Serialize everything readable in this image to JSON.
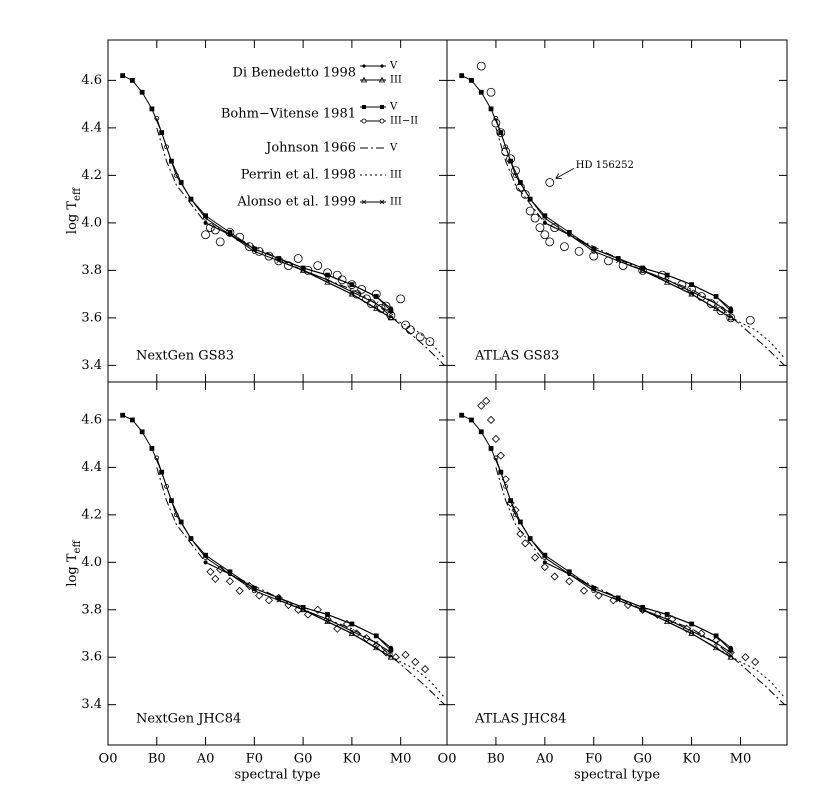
{
  "ylabel": "log T",
  "ylabel_sub": "eff",
  "xlabel": "spectral type",
  "xlim": [
    0,
    69.5
  ],
  "xticks": [
    {
      "value": 0,
      "label": "O0"
    },
    {
      "value": 10,
      "label": "B0"
    },
    {
      "value": 20,
      "label": "A0"
    },
    {
      "value": 30,
      "label": "F0"
    },
    {
      "value": 40,
      "label": "G0"
    },
    {
      "value": 50,
      "label": "K0"
    },
    {
      "value": 60,
      "label": "M0"
    }
  ],
  "curves": [
    {
      "name": "Di Benedetto 1998",
      "lines": [
        {
          "class": "V",
          "style": "dot",
          "x": [
            20,
            25,
            30,
            35,
            40,
            45,
            50,
            55,
            58
          ],
          "values": [
            4.0,
            3.95,
            3.89,
            3.85,
            3.81,
            3.78,
            3.74,
            3.69,
            3.64
          ]
        },
        {
          "class": "III",
          "style": "triangle",
          "x": [
            40,
            45,
            50,
            55,
            58
          ],
          "values": [
            3.8,
            3.75,
            3.7,
            3.64,
            3.6
          ]
        }
      ]
    },
    {
      "name": "Bohm−Vitense 1981",
      "lines": [
        {
          "class": "V",
          "style": "square",
          "x": [
            3,
            5,
            7,
            9,
            11,
            13,
            15,
            17,
            20,
            25,
            30,
            35,
            40,
            45,
            50,
            55,
            58
          ],
          "values": [
            4.62,
            4.6,
            4.55,
            4.48,
            4.38,
            4.26,
            4.17,
            4.1,
            4.03,
            3.96,
            3.89,
            3.85,
            3.81,
            3.78,
            3.74,
            3.69,
            3.63
          ]
        },
        {
          "class": "III−II",
          "style": "circle",
          "x": [
            10,
            12,
            14,
            17,
            20,
            30,
            40,
            50,
            58
          ],
          "values": [
            4.44,
            4.32,
            4.2,
            4.1,
            4.02,
            3.88,
            3.8,
            3.7,
            3.6
          ]
        }
      ]
    },
    {
      "name": "Johnson 1966",
      "lines": [
        {
          "class": "V",
          "style": "dashdot",
          "x": [
            10,
            12,
            14,
            17,
            20,
            30,
            40,
            50,
            55,
            60,
            65,
            69
          ],
          "values": [
            4.4,
            4.26,
            4.16,
            4.08,
            4.0,
            3.9,
            3.8,
            3.72,
            3.66,
            3.57,
            3.48,
            3.4
          ]
        }
      ]
    },
    {
      "name": "Perrin et al. 1998",
      "lines": [
        {
          "class": "III",
          "style": "dotted",
          "x": [
            50,
            55,
            60,
            63,
            66,
            69
          ],
          "values": [
            3.7,
            3.64,
            3.58,
            3.55,
            3.5,
            3.43
          ]
        }
      ]
    },
    {
      "name": "Alonso et al. 1999",
      "lines": [
        {
          "class": "III",
          "style": "cross",
          "x": [
            35,
            40,
            45,
            50,
            55,
            58
          ],
          "values": [
            3.84,
            3.8,
            3.76,
            3.71,
            3.66,
            3.62
          ]
        }
      ]
    }
  ],
  "chart_data": [
    {
      "type": "scatter",
      "label": "NextGen GS83",
      "marker": "circle",
      "ylim": [
        3.33,
        4.77
      ],
      "yticks": [
        3.4,
        3.6,
        3.8,
        {
          "value": 4,
          "label": "4.0"
        },
        4.2,
        4.4,
        4.6
      ],
      "x": [
        20,
        21,
        22,
        23,
        25,
        27,
        29,
        31,
        33,
        35,
        37,
        39,
        41,
        43,
        45,
        47,
        48,
        50,
        51,
        52,
        53,
        54,
        55,
        56,
        58,
        60,
        61,
        62,
        64,
        66,
        57
      ],
      "values": [
        3.95,
        3.98,
        3.97,
        3.92,
        3.96,
        3.94,
        3.9,
        3.88,
        3.86,
        3.84,
        3.82,
        3.85,
        3.8,
        3.82,
        3.79,
        3.78,
        3.76,
        3.74,
        3.7,
        3.72,
        3.68,
        3.66,
        3.7,
        3.64,
        3.61,
        3.68,
        3.57,
        3.55,
        3.52,
        3.5,
        3.65
      ]
    },
    {
      "type": "scatter",
      "label": "ATLAS GS83",
      "marker": "circle",
      "ylim": [
        3.33,
        4.77
      ],
      "yticks": [
        3.4,
        3.6,
        3.8,
        {
          "value": 4,
          "label": "4.0"
        },
        4.2,
        4.4,
        4.6
      ],
      "x": [
        7,
        9,
        10,
        11,
        12,
        13,
        14,
        15,
        16,
        17,
        18,
        19,
        20,
        21,
        22,
        24,
        27,
        30,
        33,
        36,
        40,
        44,
        48,
        50,
        52,
        54,
        56,
        58,
        62,
        21
      ],
      "values": [
        4.66,
        4.55,
        4.42,
        4.38,
        4.3,
        4.27,
        4.22,
        4.15,
        4.12,
        4.05,
        4.02,
        3.98,
        3.95,
        3.92,
        3.98,
        3.9,
        3.88,
        3.86,
        3.84,
        3.82,
        3.8,
        3.78,
        3.74,
        3.72,
        3.69,
        3.66,
        3.63,
        3.6,
        3.59,
        4.17
      ],
      "annotation": "HD 156252"
    },
    {
      "type": "scatter",
      "label": "NextGen JHC84",
      "marker": "diamond",
      "ylim": [
        3.23,
        4.76
      ],
      "yticks": [
        3.4,
        3.6,
        3.8,
        {
          "value": 4,
          "label": "4.0"
        },
        4.2,
        4.4,
        4.6
      ],
      "x": [
        21,
        22,
        23,
        25,
        27,
        29,
        31,
        33,
        35,
        37,
        39,
        41,
        43,
        45,
        47,
        49,
        51,
        53,
        55,
        57,
        59,
        61,
        63,
        65
      ],
      "values": [
        3.96,
        3.93,
        3.97,
        3.92,
        3.88,
        3.9,
        3.86,
        3.84,
        3.85,
        3.82,
        3.8,
        3.78,
        3.8,
        3.76,
        3.72,
        3.74,
        3.7,
        3.68,
        3.65,
        3.62,
        3.6,
        3.61,
        3.58,
        3.55
      ]
    },
    {
      "type": "scatter",
      "label": "ATLAS JHC84",
      "marker": "diamond",
      "ylim": [
        3.23,
        4.76
      ],
      "yticks": [
        3.4,
        3.6,
        3.8,
        {
          "value": 4,
          "label": "4.0"
        },
        4.2,
        4.4,
        4.6
      ],
      "x": [
        7,
        8,
        9,
        10,
        11,
        12,
        13,
        14,
        15,
        16,
        18,
        20,
        22,
        25,
        28,
        31,
        34,
        37,
        40,
        43,
        46,
        49,
        52,
        55,
        58,
        61,
        63
      ],
      "values": [
        4.66,
        4.68,
        4.6,
        4.52,
        4.45,
        4.35,
        4.25,
        4.22,
        4.12,
        4.08,
        4.02,
        3.98,
        3.94,
        3.92,
        3.88,
        3.86,
        3.84,
        3.82,
        3.8,
        3.78,
        3.76,
        3.72,
        3.7,
        3.67,
        3.62,
        3.6,
        3.58
      ]
    }
  ]
}
